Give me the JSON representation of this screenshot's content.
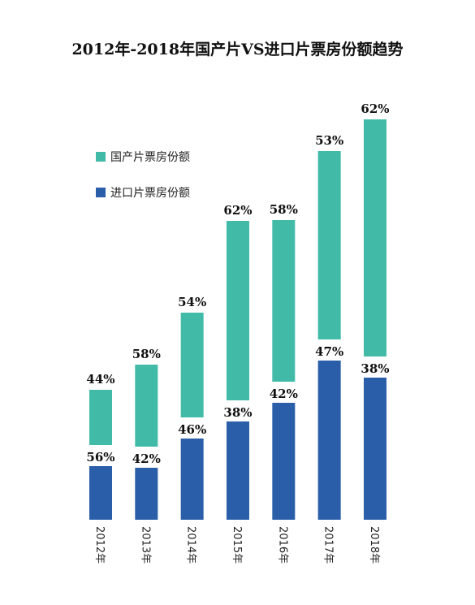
{
  "chart_data": {
    "type": "bar",
    "title": "2012年-2018年国产片VS进口片票房份额趋势",
    "categories": [
      "2012年",
      "2013年",
      "2014年",
      "2015年",
      "2016年",
      "2017年",
      "2018年"
    ],
    "series": [
      {
        "name": "进口片票房份额",
        "color": "#2a5ea8",
        "labels": [
          "56%",
          "42%",
          "46%",
          "38%",
          "42%",
          "47%",
          "38%"
        ]
      },
      {
        "name": "国产片票房份额",
        "color": "#41bba7",
        "labels": [
          "44%",
          "58%",
          "54%",
          "62%",
          "58%",
          "53%",
          "62%"
        ]
      }
    ],
    "bar_heights": {
      "imported": [
        66,
        64,
        100,
        121,
        144,
        196,
        175
      ],
      "domestic": [
        68,
        101,
        129,
        221,
        199,
        232,
        292
      ]
    },
    "legend_position": "top-left",
    "grid": false
  }
}
